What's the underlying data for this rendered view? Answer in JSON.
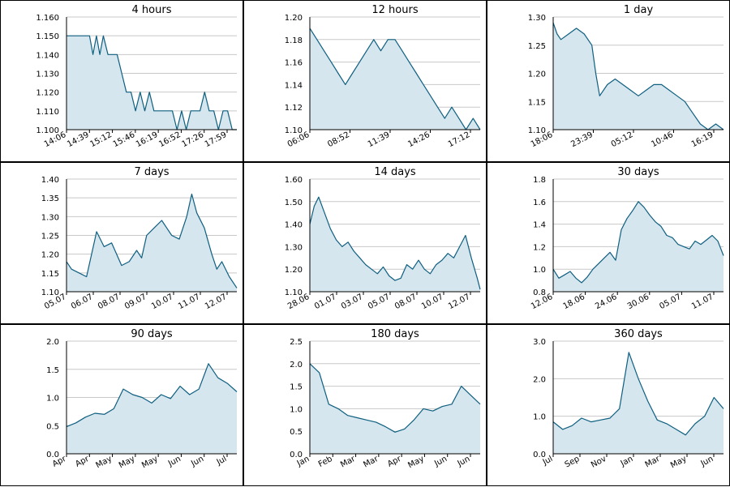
{
  "colors": {
    "line": "#0e5f80",
    "fill": "#d6e6ee",
    "grid": "#c8c8c8",
    "border": "#000000"
  },
  "chart_data": [
    {
      "type": "area",
      "title": "4 hours",
      "yticks": [
        "1.100",
        "1.110",
        "1.120",
        "1.130",
        "1.140",
        "1.150",
        "1.160"
      ],
      "ylim": [
        1.1,
        1.16
      ],
      "xticks": [
        "14:06",
        "14:39",
        "15:12",
        "15:46",
        "16:19",
        "16:52",
        "17:26",
        "17:59"
      ],
      "x": [
        0,
        0.2,
        0.4,
        0.6,
        0.8,
        1.0,
        1.15,
        1.3,
        1.45,
        1.6,
        1.8,
        2.0,
        2.2,
        2.4,
        2.6,
        2.8,
        3.0,
        3.2,
        3.4,
        3.6,
        3.8,
        4.0,
        4.2,
        4.4,
        4.6,
        4.8,
        5.0,
        5.2,
        5.4,
        5.6,
        5.8,
        6.0,
        6.2,
        6.4,
        6.6,
        6.8,
        7.0,
        7.2,
        7.4
      ],
      "y": [
        1.15,
        1.15,
        1.15,
        1.15,
        1.15,
        1.15,
        1.14,
        1.15,
        1.14,
        1.15,
        1.14,
        1.14,
        1.14,
        1.13,
        1.12,
        1.12,
        1.11,
        1.12,
        1.11,
        1.12,
        1.11,
        1.11,
        1.11,
        1.11,
        1.11,
        1.1,
        1.11,
        1.1,
        1.11,
        1.11,
        1.11,
        1.12,
        1.11,
        1.11,
        1.1,
        1.11,
        1.11,
        1.1,
        1.1
      ]
    },
    {
      "type": "area",
      "title": "12 hours",
      "yticks": [
        "1.10",
        "1.12",
        "1.14",
        "1.16",
        "1.18",
        "1.20"
      ],
      "ylim": [
        1.1,
        1.2
      ],
      "xticks": [
        "06:06",
        "08:52",
        "11:39",
        "14:26",
        "17:12"
      ],
      "x": [
        0,
        0.2,
        0.4,
        0.6,
        0.8,
        1.0,
        1.2,
        1.4,
        1.6,
        1.8,
        2.0,
        2.2,
        2.4,
        2.6,
        2.8,
        3.0,
        3.2,
        3.4,
        3.6,
        3.8,
        4.0,
        4.2,
        4.4,
        4.6,
        4.8
      ],
      "y": [
        1.19,
        1.18,
        1.17,
        1.16,
        1.15,
        1.14,
        1.15,
        1.16,
        1.17,
        1.18,
        1.17,
        1.18,
        1.18,
        1.17,
        1.16,
        1.15,
        1.14,
        1.13,
        1.12,
        1.11,
        1.12,
        1.11,
        1.1,
        1.11,
        1.1
      ]
    },
    {
      "type": "area",
      "title": "1 day",
      "yticks": [
        "1.10",
        "1.15",
        "1.20",
        "1.25",
        "1.30"
      ],
      "ylim": [
        1.1,
        1.3
      ],
      "xticks": [
        "18:06",
        "23:39",
        "05:12",
        "10:46",
        "16:19"
      ],
      "x": [
        0,
        0.1,
        0.2,
        0.4,
        0.6,
        0.8,
        1.0,
        1.1,
        1.2,
        1.4,
        1.6,
        1.8,
        2.0,
        2.2,
        2.4,
        2.6,
        2.8,
        3.0,
        3.2,
        3.4,
        3.6,
        3.8,
        4.0,
        4.2,
        4.4
      ],
      "y": [
        1.29,
        1.27,
        1.26,
        1.27,
        1.28,
        1.27,
        1.25,
        1.2,
        1.16,
        1.18,
        1.19,
        1.18,
        1.17,
        1.16,
        1.17,
        1.18,
        1.18,
        1.17,
        1.16,
        1.15,
        1.13,
        1.11,
        1.1,
        1.11,
        1.1
      ]
    },
    {
      "type": "area",
      "title": "7 days",
      "yticks": [
        "1.10",
        "1.15",
        "1.20",
        "1.25",
        "1.30",
        "1.35",
        "1.40"
      ],
      "ylim": [
        1.1,
        1.4
      ],
      "xticks": [
        "05.07",
        "06.07",
        "08.07",
        "09.07",
        "10.07",
        "11.07",
        "12.07"
      ],
      "x": [
        0,
        0.2,
        0.5,
        0.8,
        1.0,
        1.2,
        1.5,
        1.8,
        2.0,
        2.2,
        2.5,
        2.8,
        3.0,
        3.2,
        3.5,
        3.8,
        4.0,
        4.2,
        4.5,
        4.8,
        5.0,
        5.2,
        5.5,
        5.8,
        6.0,
        6.2,
        6.5,
        6.8
      ],
      "y": [
        1.18,
        1.16,
        1.15,
        1.14,
        1.2,
        1.26,
        1.22,
        1.23,
        1.2,
        1.17,
        1.18,
        1.21,
        1.19,
        1.25,
        1.27,
        1.29,
        1.27,
        1.25,
        1.24,
        1.3,
        1.36,
        1.31,
        1.27,
        1.2,
        1.16,
        1.18,
        1.14,
        1.11
      ]
    },
    {
      "type": "area",
      "title": "14 days",
      "yticks": [
        "1.10",
        "1.20",
        "1.30",
        "1.40",
        "1.50",
        "1.60"
      ],
      "ylim": [
        1.1,
        1.6
      ],
      "xticks": [
        "28.06",
        "01.07",
        "03.07",
        "05.07",
        "08.07",
        "10.07",
        "12.07"
      ],
      "x": [
        0,
        0.3,
        0.6,
        1.0,
        1.4,
        1.8,
        2.2,
        2.6,
        3.0,
        3.4,
        3.8,
        4.2,
        4.6,
        5.0,
        5.4,
        5.8,
        6.2,
        6.6,
        7.0,
        7.4,
        7.8,
        8.2,
        8.6,
        9.0,
        9.4,
        9.8,
        10.2,
        10.6,
        11.0,
        11.4,
        11.6
      ],
      "y": [
        1.4,
        1.48,
        1.52,
        1.45,
        1.38,
        1.33,
        1.3,
        1.32,
        1.28,
        1.25,
        1.22,
        1.2,
        1.18,
        1.21,
        1.17,
        1.15,
        1.16,
        1.22,
        1.2,
        1.24,
        1.2,
        1.18,
        1.22,
        1.24,
        1.27,
        1.25,
        1.3,
        1.35,
        1.25,
        1.16,
        1.11
      ]
    },
    {
      "type": "area",
      "title": "30 days",
      "yticks": [
        "0.8",
        "1.0",
        "1.2",
        "1.4",
        "1.6",
        "1.8"
      ],
      "ylim": [
        0.8,
        1.8
      ],
      "xticks": [
        "12.06",
        "18.06",
        "24.06",
        "30.06",
        "05.07",
        "11.07"
      ],
      "x": [
        0,
        1,
        2,
        3,
        4,
        5,
        6,
        7,
        8,
        9,
        10,
        11,
        12,
        13,
        14,
        15,
        16,
        17,
        18,
        19,
        20,
        21,
        22,
        23,
        24,
        25,
        26,
        27,
        28,
        29,
        30
      ],
      "y": [
        1.0,
        0.92,
        0.95,
        0.98,
        0.92,
        0.88,
        0.93,
        1.0,
        1.05,
        1.1,
        1.15,
        1.08,
        1.35,
        1.45,
        1.52,
        1.6,
        1.55,
        1.48,
        1.42,
        1.38,
        1.3,
        1.28,
        1.22,
        1.2,
        1.18,
        1.25,
        1.22,
        1.26,
        1.3,
        1.25,
        1.12
      ]
    },
    {
      "type": "area",
      "title": "90 days",
      "yticks": [
        "0.0",
        "0.5",
        "1.0",
        "1.5",
        "2.0"
      ],
      "ylim": [
        0,
        2.0
      ],
      "xticks": [
        "Apr",
        "Apr",
        "May",
        "May",
        "May",
        "Jun",
        "Jun",
        "Jul"
      ],
      "x": [
        0,
        5,
        10,
        15,
        20,
        25,
        30,
        35,
        40,
        45,
        50,
        55,
        60,
        65,
        70,
        75,
        80,
        85,
        90
      ],
      "y": [
        0.48,
        0.55,
        0.65,
        0.72,
        0.7,
        0.8,
        1.15,
        1.05,
        1.0,
        0.9,
        1.05,
        0.98,
        1.2,
        1.05,
        1.15,
        1.6,
        1.35,
        1.25,
        1.1
      ]
    },
    {
      "type": "area",
      "title": "180 days",
      "yticks": [
        "0.0",
        "0.5",
        "1.0",
        "1.5",
        "2.0",
        "2.5"
      ],
      "ylim": [
        0,
        2.5
      ],
      "xticks": [
        "Jan",
        "Feb",
        "Mar",
        "Mar",
        "Apr",
        "May",
        "Jun",
        "Jun"
      ],
      "x": [
        0,
        10,
        20,
        30,
        40,
        50,
        60,
        70,
        80,
        90,
        100,
        110,
        120,
        130,
        140,
        150,
        160,
        170,
        180
      ],
      "y": [
        2.0,
        1.8,
        1.1,
        1.0,
        0.85,
        0.8,
        0.75,
        0.7,
        0.6,
        0.48,
        0.55,
        0.75,
        1.0,
        0.95,
        1.05,
        1.1,
        1.5,
        1.3,
        1.1
      ]
    },
    {
      "type": "area",
      "title": "360 days",
      "yticks": [
        "0.0",
        "1.0",
        "2.0",
        "3.0"
      ],
      "ylim": [
        0,
        3.0
      ],
      "xticks": [
        "Jul",
        "Sep",
        "Nov",
        "Jan",
        "Mar",
        "May",
        "Jun"
      ],
      "x": [
        0,
        20,
        40,
        60,
        80,
        100,
        120,
        140,
        160,
        180,
        200,
        220,
        240,
        260,
        280,
        300,
        320,
        340,
        360
      ],
      "y": [
        0.85,
        0.65,
        0.75,
        0.95,
        0.85,
        0.9,
        0.95,
        1.2,
        2.7,
        2.0,
        1.4,
        0.9,
        0.8,
        0.65,
        0.5,
        0.8,
        1.0,
        1.5,
        1.2
      ]
    }
  ]
}
